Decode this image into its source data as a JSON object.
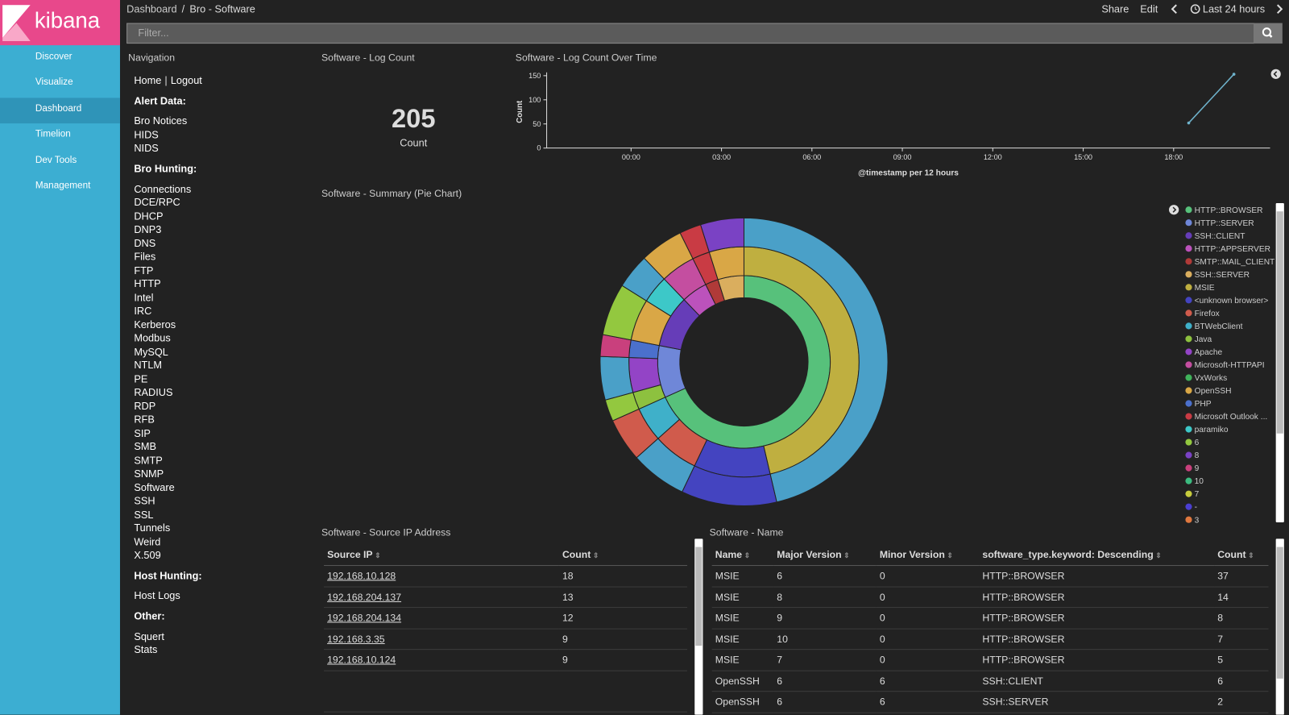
{
  "header": {
    "breadcrumb": [
      "Dashboard",
      "Bro - Software"
    ],
    "actions": [
      "Share",
      "Edit"
    ],
    "time_range": "Last 24 hours",
    "filter_placeholder": "Filter..."
  },
  "sidebar": {
    "logo": "kibana",
    "items": [
      "Discover",
      "Visualize",
      "Dashboard",
      "Timelion",
      "Dev Tools",
      "Management"
    ]
  },
  "navigation": {
    "title": "Navigation",
    "top_links": [
      "Home",
      "Logout"
    ],
    "sections": [
      {
        "heading": "Alert Data:",
        "links": [
          "Bro Notices",
          "HIDS",
          "NIDS"
        ]
      },
      {
        "heading": "Bro Hunting:",
        "links": [
          "Connections",
          "DCE/RPC",
          "DHCP",
          "DNP3",
          "DNS",
          "Files",
          "FTP",
          "HTTP",
          "Intel",
          "IRC",
          "Kerberos",
          "Modbus",
          "MySQL",
          "NTLM",
          "PE",
          "RADIUS",
          "RDP",
          "RFB",
          "SIP",
          "SMB",
          "SMTP",
          "SNMP",
          "Software",
          "SSH",
          "SSL",
          "Tunnels",
          "Weird",
          "X.509"
        ]
      },
      {
        "heading": "Host Hunting:",
        "links": [
          "Host Logs"
        ]
      },
      {
        "heading": "Other:",
        "links": [
          "Squert",
          "Stats"
        ]
      }
    ]
  },
  "log_count": {
    "title": "Software - Log Count",
    "value": 205,
    "label": "Count"
  },
  "chart_data": [
    {
      "type": "line",
      "title": "Software - Log Count Over Time",
      "x_label": "@timestamp per 12 hours",
      "y_label": "Count",
      "x": [
        18.5,
        20
      ],
      "xlim": [
        -2.8,
        21.2
      ],
      "xticks": [
        {
          "value": 0,
          "label": "00:00"
        },
        {
          "value": 3,
          "label": "03:00"
        },
        {
          "value": 6,
          "label": "06:00"
        },
        {
          "value": 9,
          "label": "09:00"
        },
        {
          "value": 12,
          "label": "12:00"
        },
        {
          "value": 15,
          "label": "15:00"
        },
        {
          "value": 18,
          "label": "18:00"
        }
      ],
      "ylim": [
        0,
        150
      ],
      "yticks": [
        0,
        50,
        100,
        150
      ],
      "series": [
        {
          "color": "#6fb3cc",
          "values": [
            52,
            153
          ]
        }
      ]
    },
    {
      "type": "pie",
      "title": "Software - Summary (Pie Chart)",
      "donut": true,
      "legend": [
        {
          "label": "HTTP::BROWSER",
          "color": "#57c17b"
        },
        {
          "label": "HTTP::SERVER",
          "color": "#6f87d8"
        },
        {
          "label": "SSH::CLIENT",
          "color": "#663db8"
        },
        {
          "label": "HTTP::APPSERVER",
          "color": "#bc52bc"
        },
        {
          "label": "SMTP::MAIL_CLIENT",
          "color": "#b03a38"
        },
        {
          "label": "SSH::SERVER",
          "color": "#daae5e"
        },
        {
          "label": "MSIE",
          "color": "#bfaf40"
        },
        {
          "label": "<unknown browser>",
          "color": "#4444c0"
        },
        {
          "label": "Firefox",
          "color": "#d05b4c"
        },
        {
          "label": "BTWebClient",
          "color": "#3fb0c9"
        },
        {
          "label": "Java",
          "color": "#8dc13f"
        },
        {
          "label": "Apache",
          "color": "#9344c6"
        },
        {
          "label": "Microsoft-HTTPAPI",
          "color": "#c44ea0"
        },
        {
          "label": "VxWorks",
          "color": "#40b35b"
        },
        {
          "label": "OpenSSH",
          "color": "#d9a746"
        },
        {
          "label": "PHP",
          "color": "#4b70cc"
        },
        {
          "label": "Microsoft Outlook ...",
          "color": "#c93b44"
        },
        {
          "label": "paramiko",
          "color": "#3dc8c8"
        },
        {
          "label": "6",
          "color": "#93c83f"
        },
        {
          "label": "8",
          "color": "#7a42c4"
        },
        {
          "label": "9",
          "color": "#c9407d"
        },
        {
          "label": "10",
          "color": "#3cbb80"
        },
        {
          "label": "7",
          "color": "#c7cc3d"
        },
        {
          "label": "-",
          "color": "#4b3fd2"
        },
        {
          "label": "3",
          "color": "#e0783f"
        }
      ],
      "rings": [
        {
          "values": [
            140,
            20,
            20,
            10,
            5,
            10
          ],
          "colors": [
            "#57c17b",
            "#6f87d8",
            "#663db8",
            "#bc52bc",
            "#b03a38",
            "#daae5e"
          ]
        },
        {
          "values": [
            95,
            22,
            13,
            10,
            5,
            10,
            5,
            12,
            8,
            10,
            5,
            10
          ],
          "colors": [
            "#bfaf40",
            "#4444c0",
            "#d05b4c",
            "#3fb0c9",
            "#8dc13f",
            "#9344c6",
            "#4b70cc",
            "#d9a746",
            "#3dc8c8",
            "#c44ea0",
            "#c93b44",
            "#d9a746"
          ]
        },
        {
          "values": [
            95,
            22,
            13,
            10,
            5,
            10,
            5,
            12,
            8,
            10,
            5,
            10
          ],
          "colors": [
            "#4aa0c8",
            "#4444c0",
            "#4aa0c8",
            "#d05b4c",
            "#93c83f",
            "#4aa0c8",
            "#c9407d",
            "#93c83f",
            "#4aa0c8",
            "#d9a746",
            "#c93b44",
            "#7a42c4"
          ]
        }
      ]
    }
  ],
  "source_ip_table": {
    "title": "Software - Source IP Address",
    "columns": [
      "Source IP",
      "Count"
    ],
    "rows": [
      [
        "192.168.10.128",
        18
      ],
      [
        "192.168.204.137",
        13
      ],
      [
        "192.168.204.134",
        12
      ],
      [
        "192.168.3.35",
        9
      ],
      [
        "192.168.10.124",
        9
      ]
    ]
  },
  "name_table": {
    "title": "Software - Name",
    "columns": [
      "Name",
      "Major Version",
      "Minor Version",
      "software_type.keyword: Descending",
      "Count"
    ],
    "rows": [
      [
        "MSIE",
        6,
        0,
        "HTTP::BROWSER",
        37
      ],
      [
        "MSIE",
        8,
        0,
        "HTTP::BROWSER",
        14
      ],
      [
        "MSIE",
        9,
        0,
        "HTTP::BROWSER",
        8
      ],
      [
        "MSIE",
        10,
        0,
        "HTTP::BROWSER",
        7
      ],
      [
        "MSIE",
        7,
        0,
        "HTTP::BROWSER",
        5
      ],
      [
        "OpenSSH",
        6,
        6,
        "SSH::CLIENT",
        6
      ],
      [
        "OpenSSH",
        6,
        6,
        "SSH::SERVER",
        2
      ]
    ]
  }
}
